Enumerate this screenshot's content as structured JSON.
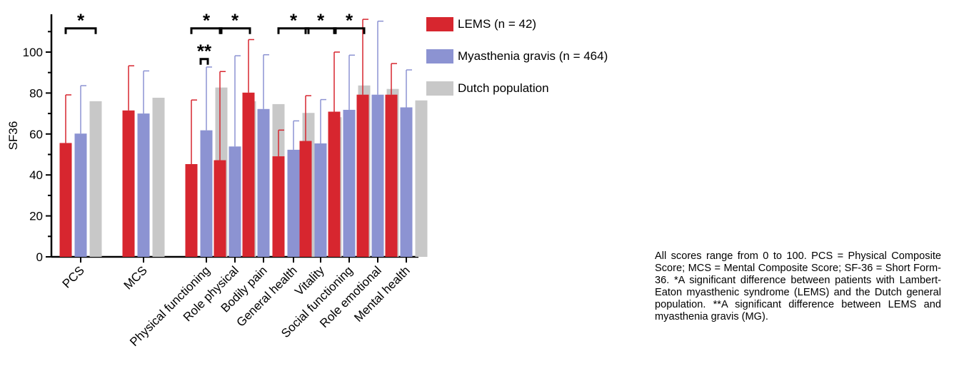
{
  "chart_data": {
    "type": "bar",
    "ylabel": "SF36",
    "ylim": [
      0,
      115
    ],
    "yticks": [
      0,
      20,
      40,
      60,
      80,
      100
    ],
    "grid": false,
    "legend_position": "right",
    "categories": [
      "PCS",
      "MCS",
      "Physical functioning",
      "Role physical",
      "Bodily pain",
      "General health",
      "Vitality",
      "Social functioning",
      "Role emotional",
      "Mental health"
    ],
    "series": [
      {
        "name": "LEMS (n = 42)",
        "color": "#d7262f",
        "values": [
          55.6,
          71.5,
          45.3,
          47.2,
          80.2,
          49.1,
          56.6,
          70.9,
          79.2,
          79.2
        ],
        "errors": [
          23.5,
          21.8,
          31.3,
          43.3,
          25.9,
          12.8,
          22.1,
          29.1,
          36.8,
          15.2
        ]
      },
      {
        "name": "Myasthenia gravis (n = 464)",
        "color": "#8c93d2",
        "values": [
          60.2,
          70.0,
          61.8,
          53.9,
          72.2,
          52.3,
          55.4,
          71.8,
          79.2,
          73.0
        ],
        "errors": [
          23.4,
          20.8,
          30.9,
          44.3,
          26.5,
          14.1,
          21.4,
          26.7,
          35.9,
          18.3
        ]
      },
      {
        "name": "Dutch population",
        "color": "#c8c8c8",
        "values": [
          76.0,
          77.7,
          82.7,
          76.0,
          74.6,
          70.3,
          68.2,
          83.7,
          82.0,
          76.4
        ],
        "errors": null
      }
    ],
    "annotations": [
      {
        "label": "*",
        "category": "PCS",
        "level": 113
      },
      {
        "label": "*",
        "category": "Physical functioning",
        "level": 113
      },
      {
        "label": "**",
        "category": "Physical functioning",
        "level": 98
      },
      {
        "label": "*",
        "category": "Role physical",
        "level": 113
      },
      {
        "label": "*",
        "category": "General health",
        "level": 113
      },
      {
        "label": "*",
        "category": "Vitality",
        "level": 113
      },
      {
        "label": "*",
        "category": "Social functioning",
        "level": 113
      }
    ]
  },
  "caption": "All scores range from 0 to 100. PCS = Physical Composite Score; MCS = Mental Composite Score; SF-36 = Short Form-36. *A significant difference between patients with Lambert-Eaton myasthenic syndrome (LEMS) and the Dutch general population. **A significant difference between LEMS and myasthenia gravis (MG)."
}
